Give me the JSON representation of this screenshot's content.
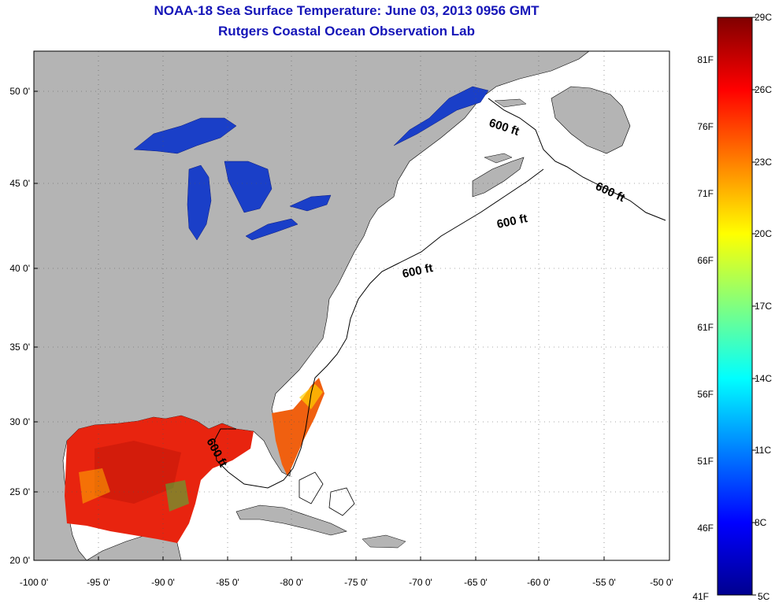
{
  "title": "NOAA-18 Sea Surface Temperature:  June 03, 2013 0956 GMT",
  "subtitle": "Rutgers Coastal Ocean Observation Lab",
  "x_ticks": [
    "-100 0'",
    "-95 0'",
    "-90 0'",
    "-85 0'",
    "-80 0'",
    "-75 0'",
    "-70 0'",
    "-65 0'",
    "-60 0'",
    "-55 0'",
    "-50 0'"
  ],
  "y_ticks": [
    "50 0'",
    "45 0'",
    "40 0'",
    "35 0'",
    "30 0'",
    "25 0'",
    "20 0'"
  ],
  "contour_labels": [
    "600 ft",
    "600 ft",
    "600 ft",
    "600 ft",
    "600 ft"
  ],
  "colorbar": {
    "celsius": [
      "29C",
      "26C",
      "23C",
      "20C",
      "17C",
      "14C",
      "11C",
      "8C",
      "5C"
    ],
    "fahrenheit": [
      "81F",
      "76F",
      "71F",
      "66F",
      "61F",
      "56F",
      "51F",
      "46F",
      "41F"
    ],
    "colors": [
      "#00008f",
      "#0000ff",
      "#0080ff",
      "#00ffff",
      "#80ff80",
      "#ffff00",
      "#ff8000",
      "#ff0000",
      "#800000"
    ]
  },
  "colors": {
    "land": "#b4b4b4",
    "lakes": "#1a3fc8",
    "gulf_sst": "#e8240f",
    "title": "#1515b8"
  }
}
